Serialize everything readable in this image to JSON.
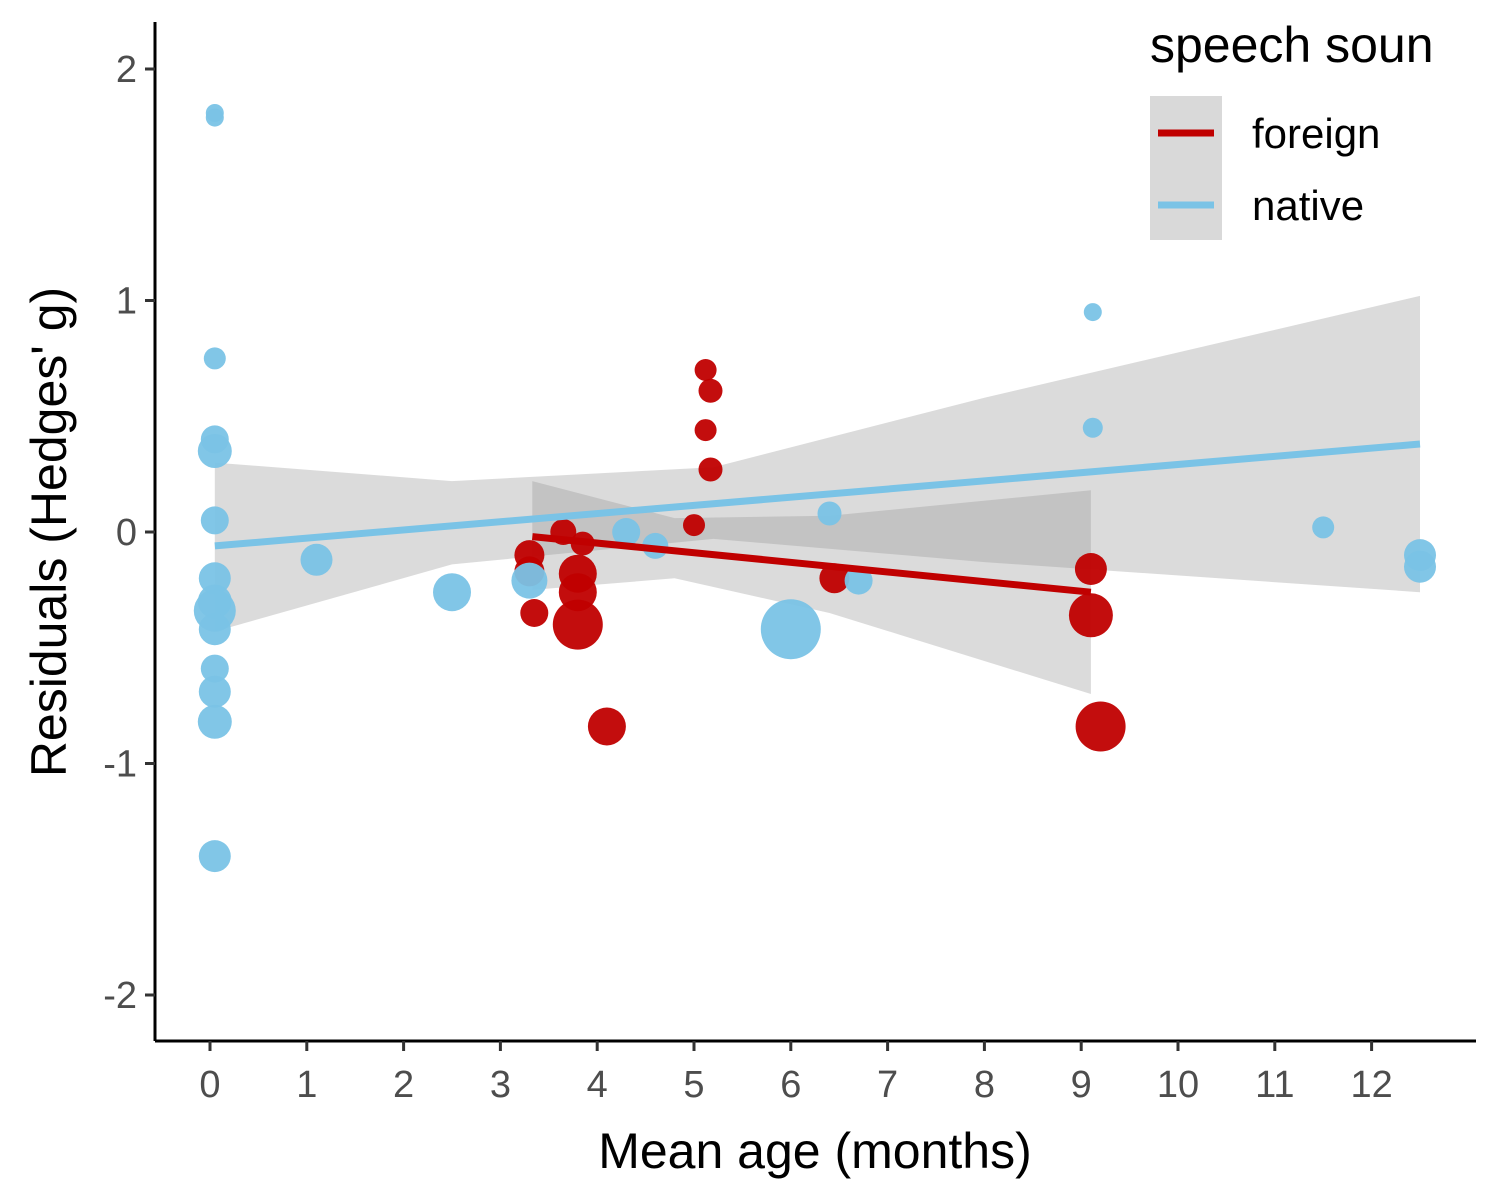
{
  "chart_data": {
    "type": "scatter",
    "xlabel": "Mean age (months)",
    "ylabel": "Residuals (Hedges' g)",
    "xlim": [
      -0.6,
      13.2
    ],
    "ylim": [
      -2.2,
      2.2
    ],
    "x_ticks": [
      0,
      1,
      2,
      3,
      4,
      5,
      6,
      7,
      8,
      9,
      10,
      11,
      12
    ],
    "y_ticks": [
      2,
      1,
      0,
      -1,
      -2
    ],
    "y_tick_labels": [
      "2",
      "1",
      "0",
      "-1",
      "-2"
    ],
    "legend": {
      "title": "speech soun",
      "position": "top-right",
      "entries": [
        {
          "label": "foreign",
          "color": "#c00000"
        },
        {
          "label": "native",
          "color": "#7ac3e6"
        }
      ]
    },
    "point_size_note": "marker area proportional to weight",
    "series": [
      {
        "name": "foreign",
        "color": "#c00000",
        "points": [
          {
            "x": 3.65,
            "y": 0.0,
            "size": 13
          },
          {
            "x": 3.85,
            "y": -0.05,
            "size": 12
          },
          {
            "x": 3.3,
            "y": -0.1,
            "size": 15
          },
          {
            "x": 3.3,
            "y": -0.17,
            "size": 15
          },
          {
            "x": 3.35,
            "y": -0.35,
            "size": 14
          },
          {
            "x": 3.8,
            "y": -0.18,
            "size": 19
          },
          {
            "x": 3.8,
            "y": -0.26,
            "size": 19
          },
          {
            "x": 3.8,
            "y": -0.4,
            "size": 25
          },
          {
            "x": 4.1,
            "y": -0.84,
            "size": 19
          },
          {
            "x": 5.0,
            "y": 0.03,
            "size": 11
          },
          {
            "x": 5.12,
            "y": 0.7,
            "size": 11
          },
          {
            "x": 5.17,
            "y": 0.61,
            "size": 12
          },
          {
            "x": 5.12,
            "y": 0.44,
            "size": 11
          },
          {
            "x": 5.17,
            "y": 0.27,
            "size": 12
          },
          {
            "x": 6.45,
            "y": -0.2,
            "size": 15
          },
          {
            "x": 9.1,
            "y": -0.16,
            "size": 16
          },
          {
            "x": 9.1,
            "y": -0.36,
            "size": 22
          },
          {
            "x": 9.2,
            "y": -0.84,
            "size": 25
          }
        ],
        "fit": {
          "x": [
            3.33,
            9.1
          ],
          "y": [
            -0.02,
            -0.26
          ]
        },
        "ci": {
          "x": [
            3.33,
            4.8,
            6.4,
            9.1
          ],
          "upper": [
            0.22,
            0.06,
            0.07,
            0.18
          ],
          "lower": [
            -0.25,
            -0.2,
            -0.35,
            -0.7
          ]
        }
      },
      {
        "name": "native",
        "color": "#7ac3e6",
        "points": [
          {
            "x": 0.05,
            "y": 1.81,
            "size": 9
          },
          {
            "x": 0.05,
            "y": 1.79,
            "size": 9
          },
          {
            "x": 0.05,
            "y": 0.75,
            "size": 11
          },
          {
            "x": 0.05,
            "y": 0.4,
            "size": 14
          },
          {
            "x": 0.05,
            "y": 0.35,
            "size": 17
          },
          {
            "x": 0.05,
            "y": 0.05,
            "size": 14
          },
          {
            "x": 0.05,
            "y": -0.2,
            "size": 16
          },
          {
            "x": 0.05,
            "y": -0.3,
            "size": 17
          },
          {
            "x": 0.05,
            "y": -0.34,
            "size": 21
          },
          {
            "x": 0.05,
            "y": -0.42,
            "size": 16
          },
          {
            "x": 0.05,
            "y": -0.59,
            "size": 14
          },
          {
            "x": 0.05,
            "y": -0.69,
            "size": 16
          },
          {
            "x": 0.05,
            "y": -0.82,
            "size": 17
          },
          {
            "x": 0.05,
            "y": -1.4,
            "size": 16
          },
          {
            "x": 1.1,
            "y": -0.12,
            "size": 16
          },
          {
            "x": 2.5,
            "y": -0.26,
            "size": 19
          },
          {
            "x": 3.3,
            "y": -0.21,
            "size": 18
          },
          {
            "x": 4.3,
            "y": 0.0,
            "size": 14
          },
          {
            "x": 4.6,
            "y": -0.06,
            "size": 13
          },
          {
            "x": 6.0,
            "y": -0.42,
            "size": 30
          },
          {
            "x": 6.4,
            "y": 0.08,
            "size": 12
          },
          {
            "x": 6.7,
            "y": -0.21,
            "size": 14
          },
          {
            "x": 9.12,
            "y": 0.95,
            "size": 9
          },
          {
            "x": 9.12,
            "y": 0.45,
            "size": 10
          },
          {
            "x": 11.5,
            "y": 0.02,
            "size": 11
          },
          {
            "x": 12.5,
            "y": -0.1,
            "size": 16
          },
          {
            "x": 12.5,
            "y": -0.15,
            "size": 16
          }
        ],
        "fit": {
          "x": [
            0.05,
            12.5
          ],
          "y": [
            -0.06,
            0.38
          ]
        },
        "ci": {
          "x": [
            0.05,
            2.5,
            5.2,
            8.0,
            12.5
          ],
          "upper": [
            0.3,
            0.22,
            0.28,
            0.58,
            1.02
          ],
          "lower": [
            -0.43,
            -0.14,
            -0.03,
            -0.13,
            -0.26
          ]
        }
      }
    ]
  }
}
